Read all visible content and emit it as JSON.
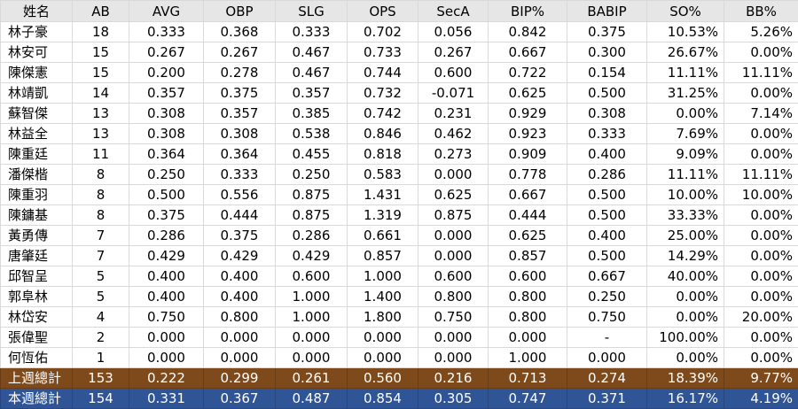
{
  "table": {
    "headers": [
      "姓名",
      "AB",
      "AVG",
      "OBP",
      "SLG",
      "OPS",
      "SecA",
      "BIP%",
      "BABIP",
      "SO%",
      "BB%"
    ],
    "rows": [
      [
        "林子豪",
        "18",
        "0.333",
        "0.368",
        "0.333",
        "0.702",
        "0.056",
        "0.842",
        "0.375",
        "10.53%",
        "5.26%"
      ],
      [
        "林安可",
        "15",
        "0.267",
        "0.267",
        "0.467",
        "0.733",
        "0.267",
        "0.667",
        "0.300",
        "26.67%",
        "0.00%"
      ],
      [
        "陳傑憲",
        "15",
        "0.200",
        "0.278",
        "0.467",
        "0.744",
        "0.600",
        "0.722",
        "0.154",
        "11.11%",
        "11.11%"
      ],
      [
        "林靖凱",
        "14",
        "0.357",
        "0.375",
        "0.357",
        "0.732",
        "-0.071",
        "0.625",
        "0.500",
        "31.25%",
        "0.00%"
      ],
      [
        "蘇智傑",
        "13",
        "0.308",
        "0.357",
        "0.385",
        "0.742",
        "0.231",
        "0.929",
        "0.308",
        "0.00%",
        "7.14%"
      ],
      [
        "林益全",
        "13",
        "0.308",
        "0.308",
        "0.538",
        "0.846",
        "0.462",
        "0.923",
        "0.333",
        "7.69%",
        "0.00%"
      ],
      [
        "陳重廷",
        "11",
        "0.364",
        "0.364",
        "0.455",
        "0.818",
        "0.273",
        "0.909",
        "0.400",
        "9.09%",
        "0.00%"
      ],
      [
        "潘傑楷",
        "8",
        "0.250",
        "0.333",
        "0.250",
        "0.583",
        "0.000",
        "0.778",
        "0.286",
        "11.11%",
        "11.11%"
      ],
      [
        "陳重羽",
        "8",
        "0.500",
        "0.556",
        "0.875",
        "1.431",
        "0.625",
        "0.667",
        "0.500",
        "10.00%",
        "10.00%"
      ],
      [
        "陳鏞基",
        "8",
        "0.375",
        "0.444",
        "0.875",
        "1.319",
        "0.875",
        "0.444",
        "0.500",
        "33.33%",
        "0.00%"
      ],
      [
        "黃勇傳",
        "7",
        "0.286",
        "0.375",
        "0.286",
        "0.661",
        "0.000",
        "0.625",
        "0.400",
        "25.00%",
        "0.00%"
      ],
      [
        "唐肇廷",
        "7",
        "0.429",
        "0.429",
        "0.429",
        "0.857",
        "0.000",
        "0.857",
        "0.500",
        "14.29%",
        "0.00%"
      ],
      [
        "邱智呈",
        "5",
        "0.400",
        "0.400",
        "0.600",
        "1.000",
        "0.600",
        "0.600",
        "0.667",
        "40.00%",
        "0.00%"
      ],
      [
        "郭阜林",
        "5",
        "0.400",
        "0.400",
        "1.000",
        "1.400",
        "0.800",
        "0.800",
        "0.250",
        "0.00%",
        "0.00%"
      ],
      [
        "林岱安",
        "4",
        "0.750",
        "0.800",
        "1.000",
        "1.800",
        "0.750",
        "0.800",
        "0.750",
        "0.00%",
        "20.00%"
      ],
      [
        "張偉聖",
        "2",
        "0.000",
        "0.000",
        "0.000",
        "0.000",
        "0.000",
        "0.000",
        "-",
        "100.00%",
        "0.00%"
      ],
      [
        "何恆佑",
        "1",
        "0.000",
        "0.000",
        "0.000",
        "0.000",
        "0.000",
        "1.000",
        "0.000",
        "0.00%",
        "0.00%"
      ]
    ],
    "totals": [
      {
        "kind": "last-week",
        "color": "#7f4a1b",
        "cells": [
          "上週總計",
          "153",
          "0.222",
          "0.299",
          "0.261",
          "0.560",
          "0.216",
          "0.713",
          "0.274",
          "18.39%",
          "9.77%"
        ]
      },
      {
        "kind": "this-week",
        "color": "#2f5597",
        "cells": [
          "本週總計",
          "154",
          "0.331",
          "0.367",
          "0.487",
          "0.854",
          "0.305",
          "0.747",
          "0.371",
          "16.17%",
          "4.19%"
        ]
      }
    ]
  },
  "colors": {
    "header_bg": "#e7e6e6",
    "grid": "#d9d9d9",
    "last_week_total": "#7f4a1b",
    "this_week_total": "#2f5597"
  }
}
